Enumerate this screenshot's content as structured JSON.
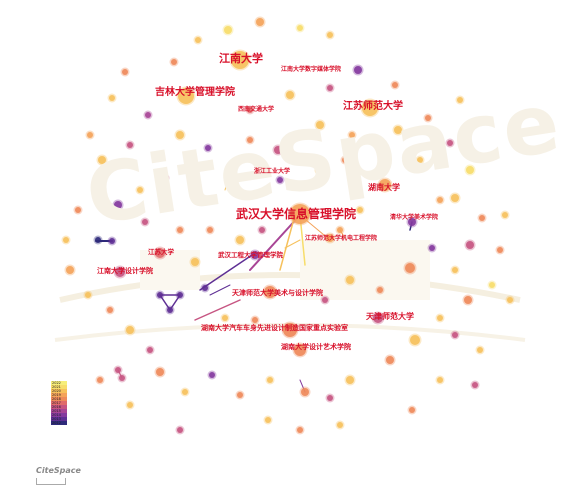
{
  "watermark": "CiteSpace",
  "logo_text": "CiteSpace",
  "labels": {
    "jiangnan": "江南大学",
    "jiangnan_media": "江南大学数字媒体学院",
    "jilin": "吉林大学管理学院",
    "xinan": "西南交通大学",
    "jiangsu_normal": "江苏师范大学",
    "zhejiang_tech": "浙江工业大学",
    "hunan": "湖南大学",
    "wuhan": "武汉大学信息管理学院",
    "tsinghua": "清华大学美术学院",
    "jiangsu_normal_mech": "江苏师范大学机电工程学院",
    "jiangsu": "江苏大学",
    "wuhan_eng": "武汉工程大学管理学院",
    "jiangnan_design": "江南大学设计学院",
    "tianjin_normal_art": "天津师范大学美术与设计学院",
    "tianjin_normal": "天津师范大学",
    "hunan_auto": "湖南大学汽车车身先进设计制造国家重点实验室",
    "hunan_design_art": "湖南大学设计艺术学院"
  },
  "legend_years": [
    "2022",
    "2021",
    "2020",
    "2019",
    "2018",
    "2017",
    "2016",
    "2015",
    "2014",
    "2013",
    "2012"
  ],
  "legend_colors": [
    "#f6ee7a",
    "#f7dd6a",
    "#f6c15c",
    "#f4a35a",
    "#ee8a5a",
    "#e06b6b",
    "#c65582",
    "#a84596",
    "#843a9e",
    "#5e2f94",
    "#2e2a7a"
  ]
}
